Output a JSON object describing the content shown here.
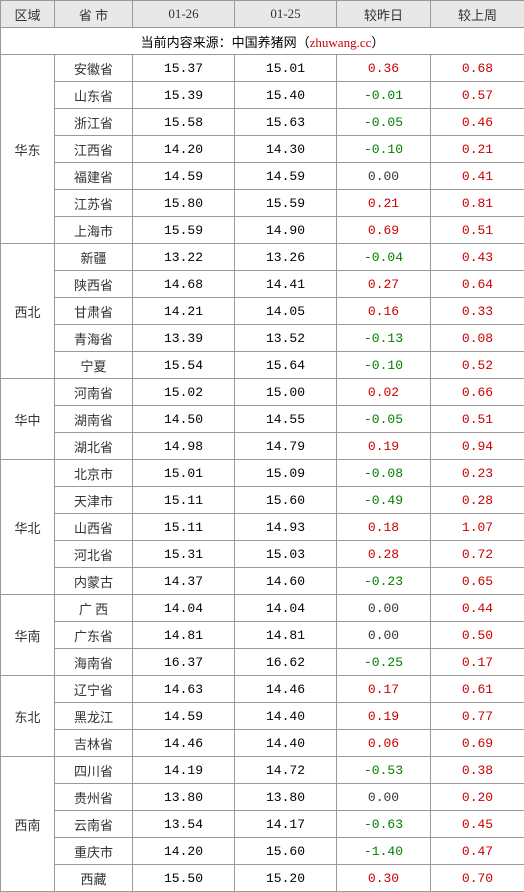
{
  "headers": {
    "region": "区域",
    "province": "省 市",
    "date1": "01-26",
    "date2": "01-25",
    "diff_day": "较昨日",
    "diff_week": "较上周"
  },
  "caption": {
    "prefix": "当前内容来源：中国养猪网（",
    "url": "zhuwang.cc",
    "suffix": "）"
  },
  "colors": {
    "header_bg": "#e8e8e8",
    "border": "#999999",
    "positive": "#cc0000",
    "negative": "#008000",
    "neutral": "#333333",
    "caption_highlight": "#cc0000"
  },
  "regions": [
    {
      "name": "华东",
      "rows": [
        {
          "province": "安徽省",
          "v1": "15.37",
          "v2": "15.01",
          "d1": "0.36",
          "d2": "0.68"
        },
        {
          "province": "山东省",
          "v1": "15.39",
          "v2": "15.40",
          "d1": "-0.01",
          "d2": "0.57"
        },
        {
          "province": "浙江省",
          "v1": "15.58",
          "v2": "15.63",
          "d1": "-0.05",
          "d2": "0.46"
        },
        {
          "province": "江西省",
          "v1": "14.20",
          "v2": "14.30",
          "d1": "-0.10",
          "d2": "0.21"
        },
        {
          "province": "福建省",
          "v1": "14.59",
          "v2": "14.59",
          "d1": "0.00",
          "d2": "0.41"
        },
        {
          "province": "江苏省",
          "v1": "15.80",
          "v2": "15.59",
          "d1": "0.21",
          "d2": "0.81"
        },
        {
          "province": "上海市",
          "v1": "15.59",
          "v2": "14.90",
          "d1": "0.69",
          "d2": "0.51"
        }
      ]
    },
    {
      "name": "西北",
      "rows": [
        {
          "province": "新疆",
          "v1": "13.22",
          "v2": "13.26",
          "d1": "-0.04",
          "d2": "0.43"
        },
        {
          "province": "陕西省",
          "v1": "14.68",
          "v2": "14.41",
          "d1": "0.27",
          "d2": "0.64"
        },
        {
          "province": "甘肃省",
          "v1": "14.21",
          "v2": "14.05",
          "d1": "0.16",
          "d2": "0.33"
        },
        {
          "province": "青海省",
          "v1": "13.39",
          "v2": "13.52",
          "d1": "-0.13",
          "d2": "0.08"
        },
        {
          "province": "宁夏",
          "v1": "15.54",
          "v2": "15.64",
          "d1": "-0.10",
          "d2": "0.52"
        }
      ]
    },
    {
      "name": "华中",
      "rows": [
        {
          "province": "河南省",
          "v1": "15.02",
          "v2": "15.00",
          "d1": "0.02",
          "d2": "0.66"
        },
        {
          "province": "湖南省",
          "v1": "14.50",
          "v2": "14.55",
          "d1": "-0.05",
          "d2": "0.51"
        },
        {
          "province": "湖北省",
          "v1": "14.98",
          "v2": "14.79",
          "d1": "0.19",
          "d2": "0.94"
        }
      ]
    },
    {
      "name": "华北",
      "rows": [
        {
          "province": "北京市",
          "v1": "15.01",
          "v2": "15.09",
          "d1": "-0.08",
          "d2": "0.23"
        },
        {
          "province": "天津市",
          "v1": "15.11",
          "v2": "15.60",
          "d1": "-0.49",
          "d2": "0.28"
        },
        {
          "province": "山西省",
          "v1": "15.11",
          "v2": "14.93",
          "d1": "0.18",
          "d2": "1.07"
        },
        {
          "province": "河北省",
          "v1": "15.31",
          "v2": "15.03",
          "d1": "0.28",
          "d2": "0.72"
        },
        {
          "province": "内蒙古",
          "v1": "14.37",
          "v2": "14.60",
          "d1": "-0.23",
          "d2": "0.65"
        }
      ]
    },
    {
      "name": "华南",
      "rows": [
        {
          "province": "广 西",
          "v1": "14.04",
          "v2": "14.04",
          "d1": "0.00",
          "d2": "0.44"
        },
        {
          "province": "广东省",
          "v1": "14.81",
          "v2": "14.81",
          "d1": "0.00",
          "d2": "0.50"
        },
        {
          "province": "海南省",
          "v1": "16.37",
          "v2": "16.62",
          "d1": "-0.25",
          "d2": "0.17"
        }
      ]
    },
    {
      "name": "东北",
      "rows": [
        {
          "province": "辽宁省",
          "v1": "14.63",
          "v2": "14.46",
          "d1": "0.17",
          "d2": "0.61"
        },
        {
          "province": "黑龙江",
          "v1": "14.59",
          "v2": "14.40",
          "d1": "0.19",
          "d2": "0.77"
        },
        {
          "province": "吉林省",
          "v1": "14.46",
          "v2": "14.40",
          "d1": "0.06",
          "d2": "0.69"
        }
      ]
    },
    {
      "name": "西南",
      "rows": [
        {
          "province": "四川省",
          "v1": "14.19",
          "v2": "14.72",
          "d1": "-0.53",
          "d2": "0.38"
        },
        {
          "province": "贵州省",
          "v1": "13.80",
          "v2": "13.80",
          "d1": "0.00",
          "d2": "0.20"
        },
        {
          "province": "云南省",
          "v1": "13.54",
          "v2": "14.17",
          "d1": "-0.63",
          "d2": "0.45"
        },
        {
          "province": "重庆市",
          "v1": "14.20",
          "v2": "15.60",
          "d1": "-1.40",
          "d2": "0.47"
        },
        {
          "province": "西藏",
          "v1": "15.50",
          "v2": "15.20",
          "d1": "0.30",
          "d2": "0.70"
        }
      ]
    }
  ]
}
